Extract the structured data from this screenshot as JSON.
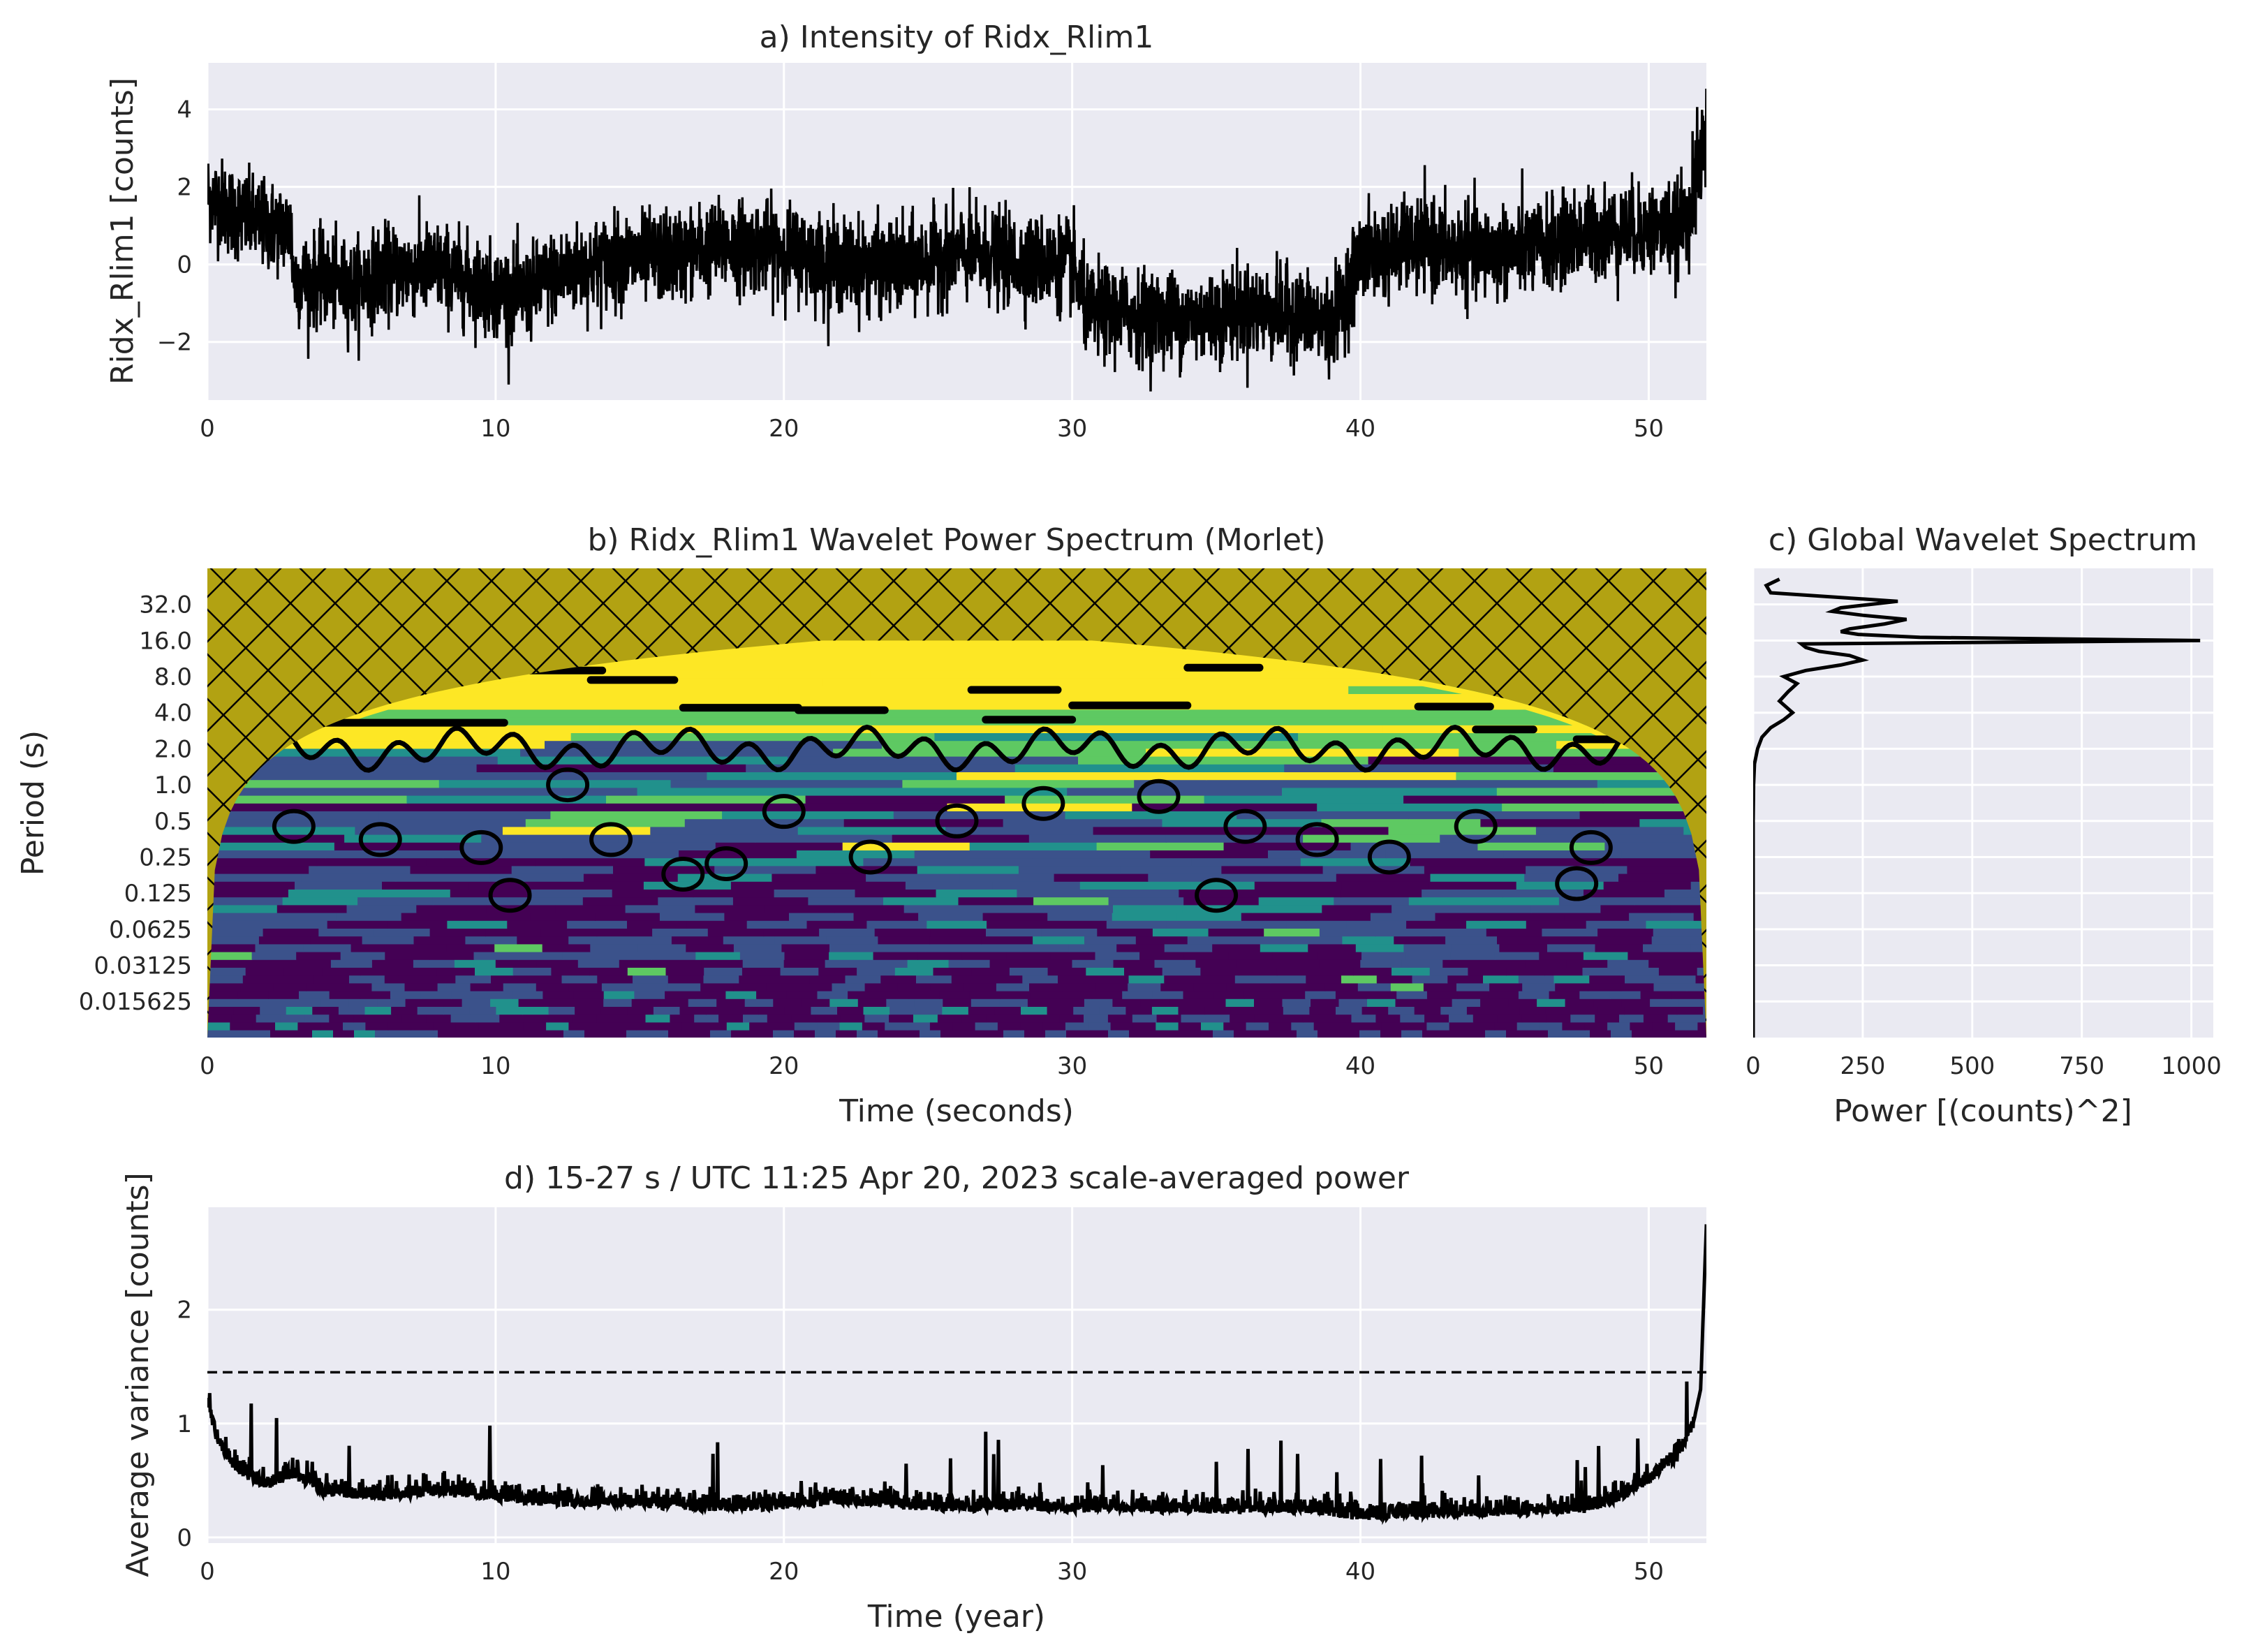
{
  "panels": {
    "a": {
      "title": "a) Intensity of Ridx_Rlim1",
      "ylabel": "Ridx_Rlim1 [counts]",
      "xlabel": "",
      "xticks": [
        "0",
        "10",
        "20",
        "30",
        "40",
        "50"
      ],
      "yticks": [
        "4",
        "2",
        "0",
        "−2"
      ]
    },
    "b": {
      "title": "b) Ridx_Rlim1 Wavelet Power Spectrum (Morlet)",
      "ylabel": "Period (s)",
      "xlabel": "Time (seconds)",
      "xticks": [
        "0",
        "10",
        "20",
        "30",
        "40",
        "50"
      ],
      "yticks": [
        "32.0",
        "16.0",
        "8.0",
        "4.0",
        "2.0",
        "1.0",
        "0.5",
        "0.25",
        "0.125",
        "0.0625",
        "0.03125",
        "0.015625"
      ]
    },
    "c": {
      "title": "c) Global Wavelet Spectrum",
      "xlabel": "Power [(counts)^2]",
      "xticks": [
        "0",
        "250",
        "500",
        "750",
        "1000"
      ]
    },
    "d": {
      "title": "d) 15-27 s / UTC 11:25 Apr 20, 2023 scale-averaged power",
      "ylabel": "Average variance [counts]",
      "xlabel": "Time (year)",
      "xticks": [
        "0",
        "10",
        "20",
        "30",
        "40",
        "50"
      ],
      "yticks": [
        "2",
        "1",
        "0"
      ]
    }
  },
  "colors": {
    "axes_bg": "#eaeaf2",
    "grid": "#ffffff",
    "line": "#000000",
    "coi_fill": "#b2a212",
    "viridis_dark": "#440154",
    "viridis_blue": "#3b528b",
    "viridis_teal": "#21918c",
    "viridis_green": "#5ec962",
    "viridis_yellow": "#fde725"
  },
  "chart_data": [
    {
      "panel": "a",
      "type": "line",
      "title": "a) Intensity of Ridx_Rlim1",
      "xlabel": "",
      "ylabel": "Ridx_Rlim1 [counts]",
      "xlim": [
        0,
        52
      ],
      "ylim": [
        -3.5,
        5.2
      ],
      "grid": true,
      "x": [
        0,
        1,
        2,
        2.9,
        3,
        4,
        5,
        6,
        8,
        10,
        11,
        12,
        14,
        16,
        18,
        20,
        22,
        24,
        26,
        28,
        30,
        30.5,
        32,
        34,
        36,
        38,
        39,
        40,
        42,
        44,
        46,
        48,
        50,
        51,
        51.5,
        52
      ],
      "y": [
        1.8,
        1.3,
        1.0,
        0.9,
        -0.4,
        -0.4,
        -0.6,
        -0.2,
        -0.1,
        -0.7,
        -0.8,
        -0.3,
        0.1,
        0.2,
        0.5,
        0.4,
        0.0,
        -0.1,
        0.3,
        0.1,
        0.0,
        -1.2,
        -1.3,
        -1.4,
        -1.2,
        -1.3,
        -1.6,
        0.2,
        0.5,
        0.3,
        0.4,
        0.8,
        0.9,
        0.9,
        1.6,
        3.5
      ],
      "noise_amplitude": 1.3
    },
    {
      "panel": "b",
      "type": "heatmap",
      "title": "b) Ridx_Rlim1 Wavelet Power Spectrum (Morlet)",
      "xlabel": "Time (seconds)",
      "ylabel": "Period (s)",
      "xlim": [
        0,
        52
      ],
      "y_scale": "log2",
      "ylim": [
        0.0078,
        64
      ],
      "colormap": "viridis",
      "significance_contour": true,
      "coi_hatched": true,
      "coi_peak": {
        "time": 26,
        "period": 16
      }
    },
    {
      "panel": "c",
      "type": "line",
      "title": "c) Global Wavelet Spectrum",
      "xlabel": "Power [(counts)^2]",
      "ylabel": "",
      "xlim": [
        0,
        1050
      ],
      "y_scale": "log2",
      "grid": true,
      "period": [
        0.0078,
        0.5,
        1,
        1.5,
        2,
        2.5,
        3,
        3.5,
        4,
        5,
        6,
        7,
        8,
        9,
        10,
        11,
        12,
        13,
        14,
        15,
        16,
        17,
        18,
        19,
        20,
        22,
        24,
        26,
        28,
        30,
        34,
        40,
        46,
        52
      ],
      "power": [
        0,
        0,
        1,
        3,
        10,
        20,
        40,
        70,
        90,
        60,
        80,
        100,
        70,
        120,
        200,
        250,
        220,
        150,
        120,
        110,
        1020,
        380,
        240,
        200,
        220,
        300,
        350,
        250,
        180,
        200,
        330,
        40,
        30,
        60
      ]
    },
    {
      "panel": "d",
      "type": "line",
      "title": "d) 15-27 s / UTC 11:25 Apr 20, 2023 scale-averaged power",
      "xlabel": "Time (year)",
      "ylabel": "Average variance [counts]",
      "xlim": [
        0,
        52
      ],
      "ylim": [
        -0.05,
        2.9
      ],
      "grid": true,
      "significance_level": 1.45,
      "x": [
        0,
        0.3,
        1,
        2,
        3,
        4,
        6,
        8,
        10,
        12,
        14,
        16,
        18,
        20,
        22,
        24,
        26,
        28,
        30,
        32,
        34,
        36,
        38,
        40,
        42,
        44,
        46,
        48,
        49,
        50,
        51,
        51.5,
        51.8,
        52
      ],
      "y": [
        1.25,
        0.85,
        0.6,
        0.45,
        0.55,
        0.4,
        0.35,
        0.4,
        0.35,
        0.3,
        0.3,
        0.28,
        0.25,
        0.28,
        0.32,
        0.28,
        0.25,
        0.27,
        0.25,
        0.25,
        0.24,
        0.24,
        0.25,
        0.18,
        0.2,
        0.22,
        0.22,
        0.25,
        0.35,
        0.5,
        0.7,
        0.95,
        1.3,
        2.75
      ],
      "noise_amplitude": 0.08
    }
  ]
}
